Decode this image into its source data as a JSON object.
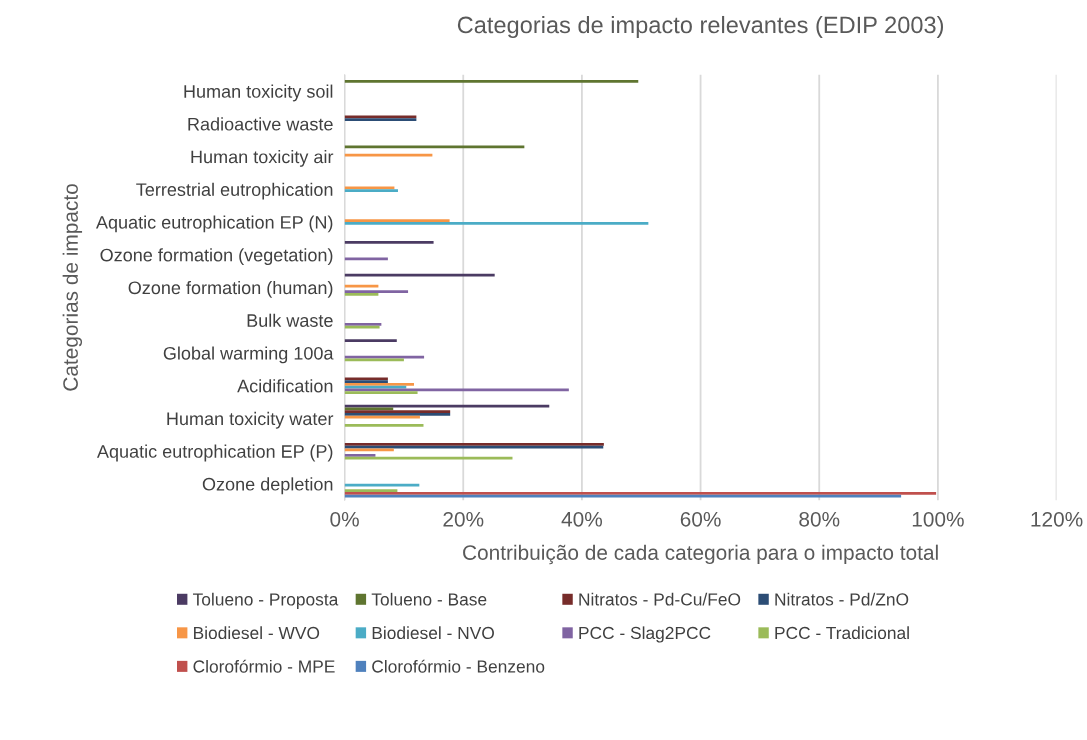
{
  "chart_data": {
    "type": "bar",
    "orientation": "horizontal",
    "title": "Categorias de impacto relevantes (EDIP 2003)",
    "xlabel": "Contribuição de cada categoria para o impacto total",
    "ylabel": "Categorias de impacto",
    "categories": [
      "Human toxicity soil",
      "Radioactive waste",
      "Human toxicity air",
      "Terrestrial eutrophication",
      "Aquatic eutrophication EP (N)",
      "Ozone formation (vegetation)",
      "Ozone formation (human)",
      "Bulk waste",
      "Global warming 100a",
      "Acidification",
      "Human toxicity water",
      "Aquatic eutrophication EP (P)",
      "Ozone depletion"
    ],
    "series": [
      {
        "name": "Tolueno - Proposta",
        "color": "#4b3b63",
        "values": [
          null,
          null,
          null,
          null,
          null,
          15.0,
          25.3,
          null,
          8.8,
          null,
          34.5,
          null,
          null
        ]
      },
      {
        "name": "Tolueno - Base",
        "color": "#5f7530",
        "values": [
          49.5,
          null,
          30.3,
          null,
          null,
          null,
          null,
          null,
          null,
          null,
          8.2,
          null,
          null
        ]
      },
      {
        "name": "Nitratos - Pd-Cu/FeO",
        "color": "#772c2a",
        "values": [
          null,
          12.1,
          null,
          null,
          null,
          null,
          null,
          null,
          null,
          7.3,
          17.8,
          43.7,
          null
        ]
      },
      {
        "name": "Nitratos - Pd/ZnO",
        "color": "#2c4d75",
        "values": [
          null,
          12.1,
          null,
          null,
          null,
          null,
          null,
          null,
          null,
          7.3,
          17.8,
          43.6,
          null
        ]
      },
      {
        "name": "Biodiesel - WVO",
        "color": "#f79646",
        "values": [
          null,
          null,
          14.8,
          8.4,
          17.7,
          null,
          5.7,
          null,
          null,
          11.7,
          12.7,
          8.3,
          null
        ]
      },
      {
        "name": "Biodiesel - NVO",
        "color": "#4bacc6",
        "values": [
          null,
          null,
          null,
          9.0,
          51.2,
          null,
          null,
          null,
          null,
          10.4,
          null,
          null,
          12.6
        ]
      },
      {
        "name": "PCC - Slag2PCC",
        "color": "#8064a2",
        "values": [
          null,
          null,
          null,
          null,
          null,
          7.3,
          10.7,
          6.2,
          13.4,
          37.8,
          null,
          5.2,
          null
        ]
      },
      {
        "name": "PCC - Tradicional",
        "color": "#9bbb59",
        "values": [
          null,
          null,
          null,
          null,
          null,
          null,
          5.7,
          5.9,
          10.0,
          12.3,
          13.3,
          28.3,
          8.9
        ]
      },
      {
        "name": "Clorofórmio - MPE",
        "color": "#c0504d",
        "values": [
          null,
          null,
          null,
          null,
          null,
          null,
          null,
          null,
          null,
          null,
          null,
          null,
          99.7
        ]
      },
      {
        "name": "Clorofórmio - Benzeno",
        "color": "#4f81bd",
        "values": [
          null,
          null,
          null,
          null,
          null,
          null,
          null,
          null,
          null,
          null,
          null,
          null,
          93.8
        ]
      }
    ],
    "xlim": [
      0,
      120
    ],
    "xticks": [
      {
        "value": 0,
        "label": "0%"
      },
      {
        "value": 20,
        "label": "20%"
      },
      {
        "value": 40,
        "label": "40%"
      },
      {
        "value": 60,
        "label": "60%"
      },
      {
        "value": 80,
        "label": "80%"
      },
      {
        "value": 100,
        "label": "100%"
      },
      {
        "value": 120,
        "label": "120%"
      }
    ],
    "grid": "x",
    "legend": "bottom"
  }
}
